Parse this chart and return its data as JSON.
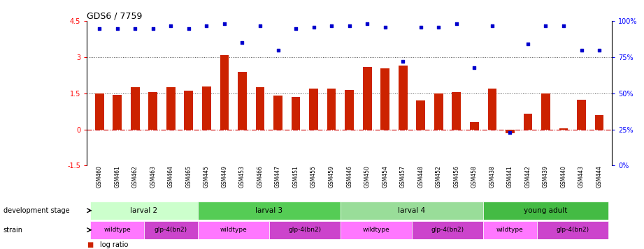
{
  "title": "GDS6 / 7759",
  "samples": [
    "GSM460",
    "GSM461",
    "GSM462",
    "GSM463",
    "GSM464",
    "GSM465",
    "GSM445",
    "GSM449",
    "GSM453",
    "GSM466",
    "GSM447",
    "GSM451",
    "GSM455",
    "GSM459",
    "GSM446",
    "GSM450",
    "GSM454",
    "GSM457",
    "GSM448",
    "GSM452",
    "GSM456",
    "GSM458",
    "GSM438",
    "GSM441",
    "GSM442",
    "GSM439",
    "GSM440",
    "GSM443",
    "GSM444"
  ],
  "log_ratio": [
    1.5,
    1.45,
    1.75,
    1.55,
    1.75,
    1.6,
    1.8,
    3.1,
    2.4,
    1.75,
    1.4,
    1.35,
    1.7,
    1.7,
    1.65,
    2.6,
    2.55,
    2.65,
    1.2,
    1.5,
    1.55,
    0.3,
    1.7,
    -0.15,
    0.65,
    1.5,
    0.05,
    1.25,
    0.6
  ],
  "percentile_pct": [
    95,
    95,
    95,
    95,
    97,
    95,
    97,
    98,
    85,
    97,
    80,
    95,
    96,
    97,
    97,
    98,
    96,
    72,
    96,
    96,
    98,
    68,
    97,
    23,
    84,
    97,
    97,
    80,
    80
  ],
  "dev_stage_groups": [
    {
      "label": "larval 2",
      "start": 0,
      "end": 6,
      "color": "#ccffcc"
    },
    {
      "label": "larval 3",
      "start": 6,
      "end": 14,
      "color": "#55cc55"
    },
    {
      "label": "larval 4",
      "start": 14,
      "end": 22,
      "color": "#99dd99"
    },
    {
      "label": "young adult",
      "start": 22,
      "end": 29,
      "color": "#44bb44"
    }
  ],
  "strain_groups": [
    {
      "label": "wildtype",
      "start": 0,
      "end": 3,
      "color": "#ff77ff"
    },
    {
      "label": "glp-4(bn2)",
      "start": 3,
      "end": 6,
      "color": "#cc44cc"
    },
    {
      "label": "wildtype",
      "start": 6,
      "end": 10,
      "color": "#ff77ff"
    },
    {
      "label": "glp-4(bn2)",
      "start": 10,
      "end": 14,
      "color": "#cc44cc"
    },
    {
      "label": "wildtype",
      "start": 14,
      "end": 18,
      "color": "#ff77ff"
    },
    {
      "label": "glp-4(bn2)",
      "start": 18,
      "end": 22,
      "color": "#cc44cc"
    },
    {
      "label": "wildtype",
      "start": 22,
      "end": 25,
      "color": "#ff77ff"
    },
    {
      "label": "glp-4(bn2)",
      "start": 25,
      "end": 29,
      "color": "#cc44cc"
    }
  ],
  "ylim_left": [
    -1.5,
    4.5
  ],
  "ylim_right": [
    0,
    100
  ],
  "yticks_left": [
    -1.5,
    0.0,
    1.5,
    3.0,
    4.5
  ],
  "yticks_right": [
    0,
    25,
    50,
    75,
    100
  ],
  "bar_color": "#cc2200",
  "dot_color": "#0000cc",
  "hline_color": "#cc0000",
  "dotted_line_color": "#555555",
  "background_color": "#ffffff"
}
